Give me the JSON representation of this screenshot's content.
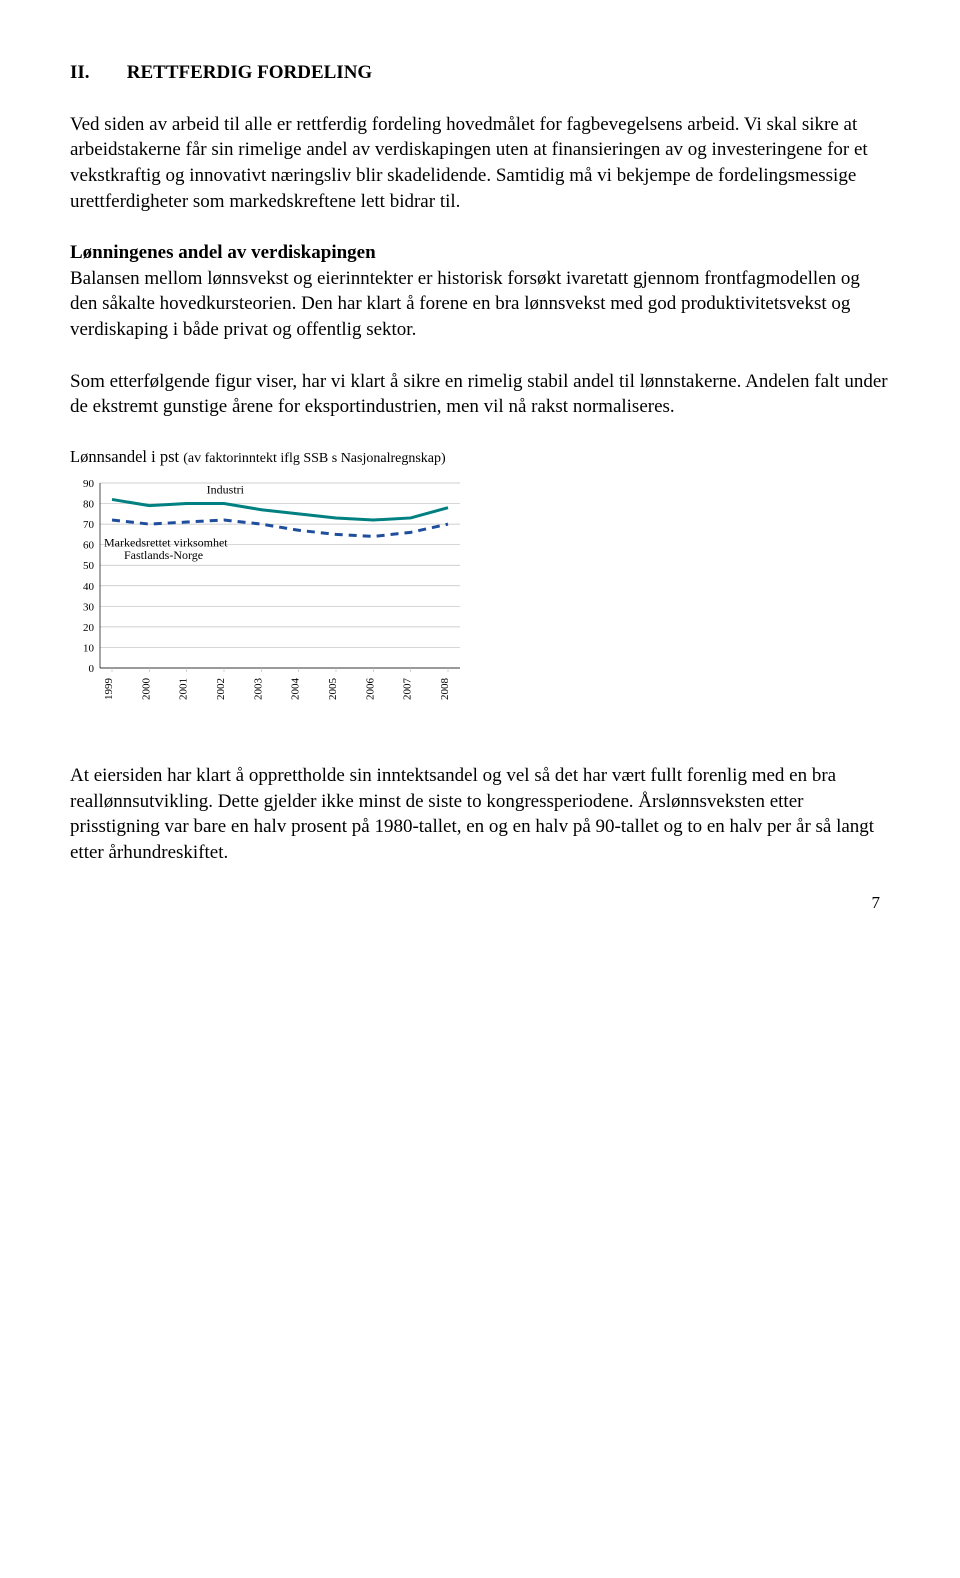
{
  "heading": {
    "roman": "II.",
    "title": "RETTFERDIG FORDELING"
  },
  "para1": "Ved siden av arbeid til alle er rettferdig fordeling hovedmålet for fagbevegelsens arbeid. Vi skal sikre at arbeidstakerne får sin rimelige andel av verdiskapingen uten at finansieringen av og investeringene for et vekstkraftig og innovativt næringsliv blir skadelidende. Samtidig må vi bekjempe de fordelingsmessige urettferdigheter som markedskreftene lett bidrar til.",
  "sub1": "Lønningenes andel av verdiskapingen",
  "para2": "Balansen mellom lønnsvekst og eierinntekter er historisk forsøkt ivaretatt gjennom frontfagmodellen og den såkalte hovedkursteorien. Den har klart å forene en bra lønnsvekst med god produktivitetsvekst og verdiskaping i både privat og offentlig sektor.",
  "para3": "Som etterfølgende figur viser, har vi klart å sikre en rimelig stabil andel til lønnstakerne. Andelen falt under de ekstremt gunstige årene for eksportindustrien, men vil nå rakst normaliseres.",
  "chart": {
    "caption_main": "Lønnsandel i pst ",
    "caption_sub": "(av faktorinntekt iflg SSB s Nasjonalregnskap)",
    "type": "line",
    "background_color": "#ffffff",
    "grid_color": "#bfbfbf",
    "ylim": [
      0,
      90
    ],
    "ytick_step": 10,
    "x_labels": [
      "1999",
      "2000",
      "2001",
      "2002",
      "2003",
      "2004",
      "2005",
      "2006",
      "2007",
      "2008"
    ],
    "series": [
      {
        "name": "Industri",
        "color": "#008080",
        "dash": "none",
        "width": 3,
        "values": [
          82,
          79,
          80,
          80,
          77,
          75,
          73,
          72,
          73,
          78
        ]
      },
      {
        "name": "Markedsrettet virksomhet Fastlands-Norge",
        "color": "#1f4e9c",
        "dash": "8,6",
        "width": 3,
        "values": [
          72,
          70,
          71,
          72,
          70,
          67,
          65,
          64,
          66,
          70
        ]
      }
    ],
    "annotations": {
      "industri": "Industri",
      "markedsrettet_line1": "Markedsrettet virksomhet",
      "markedsrettet_line2": "Fastlands-Norge"
    }
  },
  "para4": "At eiersiden har klart å opprettholde sin inntektsandel og vel så det har vært fullt forenlig med en bra reallønnsutvikling. Dette gjelder ikke minst de siste to kongressperiodene. Årslønnsveksten etter prisstigning var bare en halv prosent på 1980-tallet, en og en halv på 90-tallet og to en halv per år så langt etter århundreskiftet.",
  "page_number": "7"
}
